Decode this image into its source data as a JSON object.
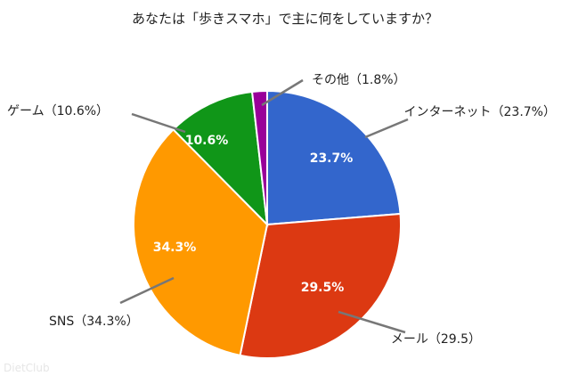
{
  "chart_data": {
    "type": "pie",
    "title": "あなたは「歩きスマホ」で主に何をしていますか？",
    "slices": [
      {
        "label": "インターネット（23.7%）",
        "value": 23.7,
        "pct_text": "23.7%",
        "color": "#3366cc"
      },
      {
        "label": "メール（29.5）",
        "value": 29.5,
        "pct_text": "29.5%",
        "color": "#dc3912"
      },
      {
        "label": "SNS（34.3%）",
        "value": 34.3,
        "pct_text": "34.3%",
        "color": "#ff9900"
      },
      {
        "label": "ゲーム（10.6%）",
        "value": 10.6,
        "pct_text": "10.6%",
        "color": "#109618"
      },
      {
        "label": "その他（1.8%）",
        "value": 1.8,
        "pct_text": "",
        "color": "#990099"
      }
    ],
    "start_angle_deg": 0,
    "direction": "clockwise"
  },
  "watermark": "DietClub"
}
